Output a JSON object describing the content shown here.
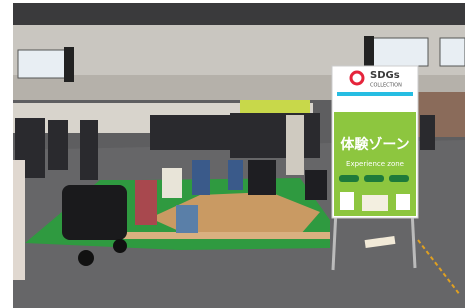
{
  "sign": {
    "logo": "SDGs",
    "logo_sub": "COLLECTION",
    "title": "体験ゾーン",
    "subtitle": "Experience zone"
  }
}
